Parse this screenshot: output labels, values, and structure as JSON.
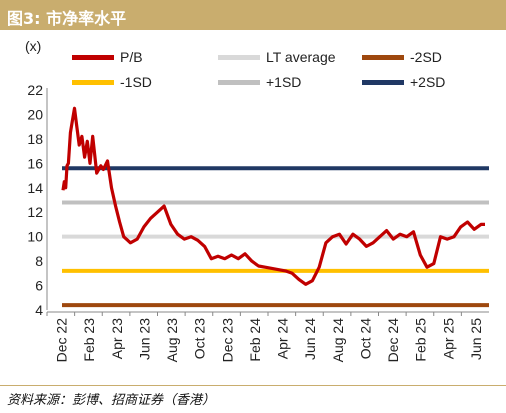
{
  "title": "图3: 市净率水平",
  "unit_label": "(x)",
  "source": "资料来源：彭博、招商证券（香港）",
  "chart_data": {
    "type": "line",
    "ylim": [
      4,
      22
    ],
    "y_ticks": [
      4,
      6,
      8,
      10,
      12,
      14,
      16,
      18,
      20,
      22
    ],
    "x_ticks": [
      "Dec 22",
      "Feb 23",
      "Apr 23",
      "Jun 23",
      "Aug 23",
      "Oct 23",
      "Dec 23",
      "Feb 24",
      "Apr 24",
      "Jun 24",
      "Aug 24",
      "Oct 24",
      "Dec 24",
      "Feb 25",
      "Apr 25",
      "Jun 25"
    ],
    "grid": false,
    "legend_position": "top",
    "reference_lines": [
      {
        "name": "LT average",
        "value": 10.0,
        "color": "#d9d9d9"
      },
      {
        "name": "-2SD",
        "value": 4.4,
        "color": "#9e480e"
      },
      {
        "name": "-1SD",
        "value": 7.2,
        "color": "#ffc000"
      },
      {
        "name": "+1SD",
        "value": 12.8,
        "color": "#c0c0c0"
      },
      {
        "name": "+2SD",
        "value": 15.6,
        "color": "#203864"
      }
    ],
    "series": [
      {
        "name": "P/B",
        "color": "#c00000",
        "x": [
          0,
          0.1,
          0.2,
          0.3,
          0.4,
          0.55,
          0.7,
          0.85,
          1.0,
          1.2,
          1.4,
          1.6,
          1.8,
          2.0,
          2.2,
          2.5,
          2.8,
          3.0,
          3.3,
          3.6,
          3.9,
          4.2,
          4.5,
          5.0,
          5.5,
          6.0,
          6.5,
          7.0,
          7.5,
          8.0,
          8.5,
          9.0,
          9.5,
          10.0,
          10.5,
          11.0,
          11.5,
          12.0,
          12.5,
          13.0,
          13.5,
          14.0,
          14.5,
          15.0,
          15.5,
          16.0,
          16.5,
          17.0,
          17.5,
          18.0,
          18.5,
          19.0,
          19.5,
          20.0,
          20.5,
          21.0,
          21.5,
          22.0,
          22.5,
          23.0,
          23.5,
          24.0,
          24.5,
          25.0,
          25.5,
          26.0,
          26.5,
          27.0,
          27.5,
          28.0,
          28.5,
          29.0,
          29.5,
          30.0,
          30.5,
          31.0,
          31.3
        ],
        "values": [
          13.8,
          14.5,
          14.0,
          15.8,
          16.0,
          18.5,
          19.5,
          20.5,
          19.2,
          17.5,
          18.2,
          16.5,
          17.8,
          16.0,
          18.2,
          15.2,
          15.8,
          15.5,
          16.2,
          14.0,
          12.5,
          11.2,
          10.0,
          9.5,
          9.8,
          10.8,
          11.5,
          12.0,
          12.5,
          11.0,
          10.2,
          9.8,
          10.0,
          9.7,
          9.2,
          8.2,
          8.4,
          8.2,
          8.5,
          8.2,
          8.6,
          8.0,
          7.6,
          7.5,
          7.4,
          7.3,
          7.2,
          7.0,
          6.5,
          6.1,
          6.4,
          7.5,
          9.5,
          10.0,
          10.2,
          9.4,
          10.2,
          9.8,
          9.2,
          9.5,
          10.0,
          10.5,
          9.8,
          10.2,
          10.0,
          10.4,
          8.5,
          7.5,
          7.8,
          10.0,
          9.8,
          10.0,
          10.8,
          11.2,
          10.6,
          11.0,
          11.0
        ]
      }
    ]
  },
  "legend": [
    {
      "label": "P/B",
      "color": "#c00000"
    },
    {
      "label": "LT average",
      "color": "#d9d9d9"
    },
    {
      "label": "-2SD",
      "color": "#9e480e"
    },
    {
      "label": "-1SD",
      "color": "#ffc000"
    },
    {
      "label": "+1SD",
      "color": "#c0c0c0"
    },
    {
      "label": "+2SD",
      "color": "#203864"
    }
  ]
}
